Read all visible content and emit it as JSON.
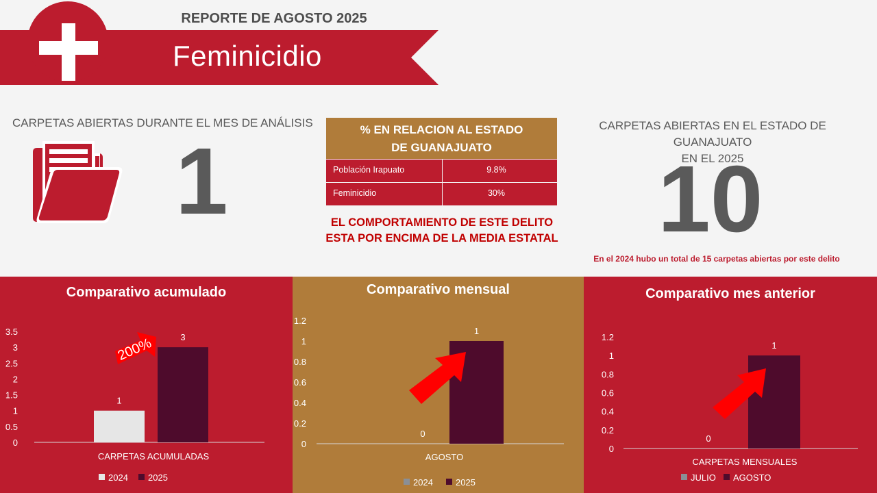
{
  "header": {
    "report_title": "REPORTE DE  AGOSTO 2025",
    "crime": "Feminicidio",
    "icon": "cross-icon"
  },
  "kpi_left": {
    "title": "CARPETAS ABIERTAS DURANTE EL MES DE ANÁLISIS",
    "value": "1",
    "icon": "folder-icon"
  },
  "table": {
    "header_line1": "% EN RELACION AL ESTADO",
    "header_line2": "DE GUANAJUATO",
    "rows": [
      {
        "label": "Población Irapuato",
        "value": "9.8%"
      },
      {
        "label": "Feminicidio",
        "value": "30%"
      }
    ],
    "alert_line1": "EL COMPORTAMIENTO DE ESTE DELITO",
    "alert_line2": "ESTA POR ENCIMA DE LA MEDIA ESTATAL"
  },
  "kpi_right": {
    "title_line1": "CARPETAS ABIERTAS EN EL ESTADO DE GUANAJUATO",
    "title_line2": "EN EL 2025",
    "value": "10",
    "note": "En el 2024 hubo un total de 15 carpetas abiertas por este delito"
  },
  "colors": {
    "red": "#bc1c2e",
    "gold": "#b07c3a",
    "dark_bar": "#4e0b2c",
    "light_bar": "#e6e6e6",
    "grey_bar": "#8a8f96",
    "arrow": "#ff0000"
  },
  "chart_data": [
    {
      "type": "bar",
      "title": "Comparativo acumulado",
      "categories": [
        "CARPETAS ACUMULADAS"
      ],
      "series": [
        {
          "name": "2024",
          "values": [
            1
          ]
        },
        {
          "name": "2025",
          "values": [
            3
          ]
        }
      ],
      "ylim": [
        0,
        3.5
      ],
      "yticks": [
        "0",
        "0.5",
        "1",
        "1.5",
        "2",
        "2.5",
        "3",
        "3.5"
      ],
      "annotation": "200%",
      "legend": "bottom",
      "grid": false
    },
    {
      "type": "bar",
      "title": "Comparativo mensual",
      "categories": [
        "AGOSTO"
      ],
      "series": [
        {
          "name": "2024",
          "values": [
            0
          ]
        },
        {
          "name": "2025",
          "values": [
            1
          ]
        }
      ],
      "ylim": [
        0,
        1.2
      ],
      "yticks": [
        "0",
        "0.2",
        "0.4",
        "0.6",
        "0.8",
        "1",
        "1.2"
      ],
      "legend": "bottom",
      "grid": false
    },
    {
      "type": "bar",
      "title": "Comparativo mes anterior",
      "categories": [
        "CARPETAS MENSUALES"
      ],
      "series": [
        {
          "name": "JULIO",
          "values": [
            0
          ]
        },
        {
          "name": "AGOSTO",
          "values": [
            1
          ]
        }
      ],
      "ylim": [
        0,
        1.2
      ],
      "yticks": [
        "0",
        "0.2",
        "0.4",
        "0.6",
        "0.8",
        "1",
        "1.2"
      ],
      "legend": "bottom",
      "grid": false
    }
  ]
}
